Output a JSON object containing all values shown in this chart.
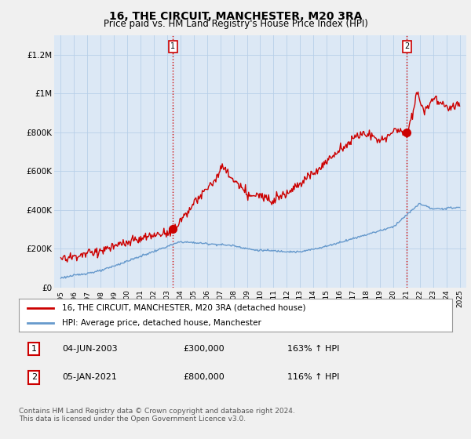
{
  "title": "16, THE CIRCUIT, MANCHESTER, M20 3RA",
  "subtitle": "Price paid vs. HM Land Registry's House Price Index (HPI)",
  "legend_line1": "16, THE CIRCUIT, MANCHESTER, M20 3RA (detached house)",
  "legend_line2": "HPI: Average price, detached house, Manchester",
  "annotation1_date": "04-JUN-2003",
  "annotation1_price": "£300,000",
  "annotation1_hpi": "163% ↑ HPI",
  "annotation2_date": "05-JAN-2021",
  "annotation2_price": "£800,000",
  "annotation2_hpi": "116% ↑ HPI",
  "footer": "Contains HM Land Registry data © Crown copyright and database right 2024.\nThis data is licensed under the Open Government Licence v3.0.",
  "price_color": "#cc0000",
  "hpi_color": "#6699cc",
  "background_color": "#f0f0f0",
  "plot_bg_color": "#dce8f5",
  "grid_color": "#b8cfe8",
  "ylim": [
    0,
    1300000
  ],
  "yticks": [
    0,
    200000,
    400000,
    600000,
    800000,
    1000000,
    1200000
  ],
  "ytick_labels": [
    "£0",
    "£200K",
    "£400K",
    "£600K",
    "£800K",
    "£1M",
    "£1.2M"
  ],
  "sale1_year": 2003.42,
  "sale1_price": 300000,
  "sale2_year": 2021.04,
  "sale2_price": 800000
}
